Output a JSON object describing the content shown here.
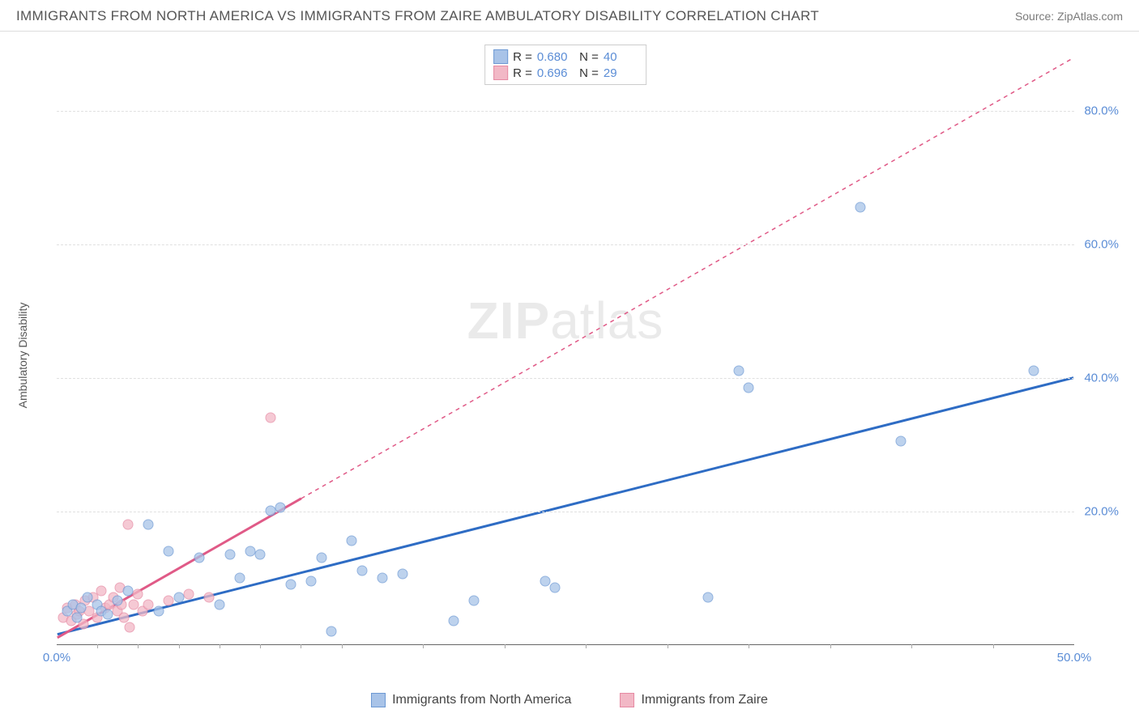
{
  "title": "IMMIGRANTS FROM NORTH AMERICA VS IMMIGRANTS FROM ZAIRE AMBULATORY DISABILITY CORRELATION CHART",
  "source": "Source: ZipAtlas.com",
  "y_label": "Ambulatory Disability",
  "watermark": {
    "bold": "ZIP",
    "rest": "atlas"
  },
  "chart": {
    "type": "scatter-correlation",
    "background_color": "#ffffff",
    "grid_color": "#e0e0e0",
    "axis_color": "#666666",
    "tick_color": "#5b8dd6",
    "tick_fontsize": 15,
    "title_fontsize": 17,
    "title_color": "#555555",
    "label_fontsize": 14,
    "label_color": "#555555",
    "left_axis": {
      "min": 0,
      "max": 90,
      "ticks": []
    },
    "right_axis": {
      "min": 0,
      "max": 90,
      "ticks": [
        {
          "v": 20,
          "label": "20.0%"
        },
        {
          "v": 40,
          "label": "40.0%"
        },
        {
          "v": 60,
          "label": "60.0%"
        },
        {
          "v": 80,
          "label": "80.0%"
        }
      ]
    },
    "x_axis": {
      "min": 0,
      "max": 50,
      "ticks": [
        {
          "v": 0,
          "label": "0.0%"
        },
        {
          "v": 50,
          "label": "50.0%"
        }
      ],
      "minor_ticks": [
        2,
        4,
        6,
        8,
        10,
        12,
        14,
        18,
        22,
        26,
        30,
        34,
        38,
        42,
        46
      ]
    },
    "series": [
      {
        "name": "Immigrants from North America",
        "fill": "#a8c3e8",
        "stroke": "#6d99d4",
        "marker_size": 13,
        "marker_opacity": 0.75,
        "line_color": "#2e6cc4",
        "line_width": 3,
        "line_dash": "none",
        "line_start": {
          "x": 0,
          "y": 1.5
        },
        "line_end": {
          "x": 50,
          "y": 40
        },
        "dashed_from_x": null,
        "R": "0.680",
        "N": "40",
        "points": [
          {
            "x": 0.5,
            "y": 5
          },
          {
            "x": 0.8,
            "y": 6
          },
          {
            "x": 1.0,
            "y": 4
          },
          {
            "x": 1.2,
            "y": 5.5
          },
          {
            "x": 1.5,
            "y": 7
          },
          {
            "x": 2.0,
            "y": 6
          },
          {
            "x": 2.2,
            "y": 5
          },
          {
            "x": 2.5,
            "y": 4.5
          },
          {
            "x": 3.0,
            "y": 6.5
          },
          {
            "x": 3.5,
            "y": 8
          },
          {
            "x": 4.5,
            "y": 18
          },
          {
            "x": 5.0,
            "y": 5
          },
          {
            "x": 5.5,
            "y": 14
          },
          {
            "x": 6.0,
            "y": 7
          },
          {
            "x": 7.0,
            "y": 13
          },
          {
            "x": 8.0,
            "y": 6
          },
          {
            "x": 8.5,
            "y": 13.5
          },
          {
            "x": 9.0,
            "y": 10
          },
          {
            "x": 9.5,
            "y": 14
          },
          {
            "x": 10.0,
            "y": 13.5
          },
          {
            "x": 10.5,
            "y": 20
          },
          {
            "x": 11.0,
            "y": 20.5
          },
          {
            "x": 11.5,
            "y": 9
          },
          {
            "x": 12.5,
            "y": 9.5
          },
          {
            "x": 13.0,
            "y": 13
          },
          {
            "x": 13.5,
            "y": 2
          },
          {
            "x": 14.5,
            "y": 15.5
          },
          {
            "x": 15.0,
            "y": 11
          },
          {
            "x": 16.0,
            "y": 10
          },
          {
            "x": 17.0,
            "y": 10.5
          },
          {
            "x": 19.5,
            "y": 3.5
          },
          {
            "x": 20.5,
            "y": 6.5
          },
          {
            "x": 24.0,
            "y": 9.5
          },
          {
            "x": 24.5,
            "y": 8.5
          },
          {
            "x": 32.0,
            "y": 7
          },
          {
            "x": 33.5,
            "y": 41
          },
          {
            "x": 34.0,
            "y": 38.5
          },
          {
            "x": 39.5,
            "y": 65.5
          },
          {
            "x": 41.5,
            "y": 30.5
          },
          {
            "x": 48.0,
            "y": 41
          }
        ]
      },
      {
        "name": "Immigrants from Zaire",
        "fill": "#f2b8c6",
        "stroke": "#e68aa3",
        "marker_size": 13,
        "marker_opacity": 0.75,
        "line_color": "#e05a87",
        "line_width": 3,
        "line_dash": "5,5",
        "line_start": {
          "x": 0,
          "y": 1
        },
        "line_end": {
          "x": 50,
          "y": 88
        },
        "dashed_from_x": 12,
        "R": "0.696",
        "N": "29",
        "points": [
          {
            "x": 0.3,
            "y": 4
          },
          {
            "x": 0.5,
            "y": 5.5
          },
          {
            "x": 0.7,
            "y": 3.5
          },
          {
            "x": 0.9,
            "y": 6
          },
          {
            "x": 1.0,
            "y": 4.5
          },
          {
            "x": 1.1,
            "y": 5
          },
          {
            "x": 1.3,
            "y": 3
          },
          {
            "x": 1.4,
            "y": 6.5
          },
          {
            "x": 1.6,
            "y": 5
          },
          {
            "x": 1.8,
            "y": 7
          },
          {
            "x": 2.0,
            "y": 4
          },
          {
            "x": 2.2,
            "y": 8
          },
          {
            "x": 2.4,
            "y": 5.5
          },
          {
            "x": 2.6,
            "y": 6
          },
          {
            "x": 2.8,
            "y": 7
          },
          {
            "x": 3.0,
            "y": 5
          },
          {
            "x": 3.1,
            "y": 8.5
          },
          {
            "x": 3.3,
            "y": 4
          },
          {
            "x": 3.5,
            "y": 18
          },
          {
            "x": 3.6,
            "y": 2.5
          },
          {
            "x": 3.8,
            "y": 6
          },
          {
            "x": 4.0,
            "y": 7.5
          },
          {
            "x": 4.2,
            "y": 5
          },
          {
            "x": 4.5,
            "y": 6
          },
          {
            "x": 5.5,
            "y": 6.5
          },
          {
            "x": 6.5,
            "y": 7.5
          },
          {
            "x": 7.5,
            "y": 7
          },
          {
            "x": 10.5,
            "y": 34
          },
          {
            "x": 3.2,
            "y": 6
          }
        ]
      }
    ]
  },
  "legend_bottom": {
    "items": [
      {
        "label": "Immigrants from North America",
        "fill": "#a8c3e8",
        "stroke": "#6d99d4"
      },
      {
        "label": "Immigrants from Zaire",
        "fill": "#f2b8c6",
        "stroke": "#e68aa3"
      }
    ]
  },
  "stats_box": {
    "border_color": "#cccccc"
  }
}
